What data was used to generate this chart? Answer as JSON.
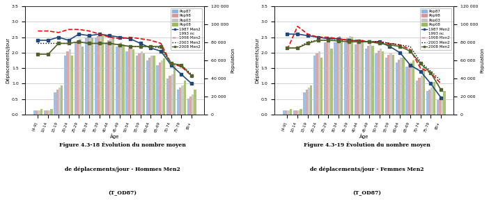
{
  "age_labels": [
    "[4-9]",
    "10-14",
    "15-19",
    "20-24",
    "25-29",
    "30-34",
    "35-39",
    "40-44",
    "45-49",
    "50-54",
    "55-59",
    "60-64",
    "65-69",
    "70-74",
    "75-79",
    "80+"
  ],
  "charts": [
    {
      "title_lines": [
        "Figure 4.3-18 Évolution du nombre moyen",
        "de déplacements/jour - Hommes Men2",
        "(T_OD87)"
      ],
      "pop87": [
        5000,
        5000,
        25000,
        65000,
        80000,
        85000,
        85000,
        80000,
        75000,
        70000,
        65000,
        60000,
        55000,
        40000,
        28000,
        18000
      ],
      "pop98": [
        5000,
        5000,
        28000,
        70000,
        82000,
        87000,
        87000,
        82000,
        78000,
        73000,
        68000,
        63000,
        58000,
        43000,
        30000,
        20000
      ],
      "pop03": [
        5000,
        5000,
        30000,
        72000,
        84000,
        89000,
        89000,
        84000,
        80000,
        75000,
        70000,
        65000,
        60000,
        45000,
        32000,
        22000
      ],
      "pop08": [
        6000,
        6000,
        32000,
        65000,
        75000,
        85000,
        88000,
        85000,
        78000,
        72000,
        68000,
        65000,
        62000,
        55000,
        38000,
        28000
      ],
      "men2_1987": [
        2.4,
        2.4,
        2.5,
        2.4,
        2.6,
        2.55,
        2.6,
        2.55,
        2.5,
        2.45,
        2.3,
        2.15,
        2.05,
        1.6,
        1.3,
        1.0
      ],
      "men2_1993": null,
      "men2_1998": [
        2.7,
        2.7,
        2.65,
        2.75,
        2.75,
        2.7,
        2.6,
        2.5,
        2.45,
        2.5,
        2.45,
        2.4,
        2.3,
        1.65,
        1.55,
        1.25
      ],
      "men2_2003": [
        2.3,
        2.3,
        2.3,
        2.3,
        2.35,
        2.3,
        2.3,
        2.3,
        2.25,
        2.2,
        2.2,
        2.2,
        2.15,
        1.65,
        1.6,
        1.3
      ],
      "men2_2008": [
        1.95,
        1.95,
        2.3,
        2.3,
        2.35,
        2.3,
        2.3,
        2.3,
        2.25,
        2.2,
        2.2,
        2.2,
        2.2,
        1.65,
        1.6,
        1.25
      ]
    },
    {
      "title_lines": [
        "Figure 4.3-19 Évolution du nombre moyen",
        "de déplacements/jour - Femmes Men2",
        "(T_OD87)"
      ],
      "pop87": [
        5000,
        5000,
        25000,
        65000,
        80000,
        80000,
        80000,
        78000,
        73000,
        68000,
        63000,
        58000,
        53000,
        38000,
        26000,
        16000
      ],
      "pop98": [
        5000,
        5000,
        28000,
        68000,
        80000,
        85000,
        85000,
        80000,
        76000,
        71000,
        66000,
        61000,
        56000,
        41000,
        28000,
        18000
      ],
      "pop03": [
        5000,
        5000,
        30000,
        70000,
        82000,
        87000,
        87000,
        82000,
        78000,
        73000,
        68000,
        63000,
        58000,
        43000,
        30000,
        20000
      ],
      "pop08": [
        6000,
        6000,
        32000,
        63000,
        73000,
        83000,
        86000,
        83000,
        76000,
        70000,
        66000,
        63000,
        60000,
        53000,
        36000,
        26000
      ],
      "men2_1987": [
        2.6,
        2.6,
        2.55,
        2.5,
        2.45,
        2.45,
        2.4,
        2.38,
        2.35,
        2.35,
        2.2,
        2.0,
        1.6,
        1.4,
        1.0,
        0.55
      ],
      "men2_1993": null,
      "men2_1998": [
        2.1,
        2.85,
        2.6,
        2.5,
        2.5,
        2.45,
        2.4,
        2.4,
        2.35,
        2.35,
        2.3,
        2.25,
        2.1,
        1.5,
        1.35,
        1.0
      ],
      "men2_2003": [
        2.15,
        2.15,
        2.35,
        2.4,
        2.4,
        2.4,
        2.35,
        2.35,
        2.35,
        2.35,
        2.3,
        2.25,
        2.2,
        1.7,
        1.4,
        1.1
      ],
      "men2_2008": [
        2.15,
        2.15,
        2.3,
        2.4,
        2.4,
        2.38,
        2.35,
        2.35,
        2.35,
        2.3,
        2.25,
        2.2,
        2.05,
        1.65,
        1.35,
        0.8
      ]
    }
  ],
  "bar_colors": {
    "pop87": "#8db4e2",
    "pop98": "#da9694",
    "pop03": "#c4c4c4",
    "pop08": "#9bbb59"
  },
  "line_colors": {
    "men2_1987": "#1f497d",
    "men2_1998": "#ff0000",
    "men2_2003": "#000000",
    "men2_2008": "#4f6228"
  },
  "ylim_left": [
    0,
    3.5
  ],
  "ylim_right": [
    0,
    120000
  ],
  "yticks_right": [
    0,
    20000,
    40000,
    60000,
    80000,
    100000,
    120000
  ],
  "ytick_labels_right": [
    "0",
    "20 000",
    "40 000",
    "60 000",
    "80 000",
    "100 000",
    "120 000"
  ],
  "yticks_left": [
    0,
    0.5,
    1.0,
    1.5,
    2.0,
    2.5,
    3.0,
    3.5
  ],
  "ylabel_left": "Déplacements/jour",
  "ylabel_right": "Population",
  "xlabel": "Âge",
  "legend_bars": [
    "Pop87",
    "Pop98",
    "Pop03",
    "Pop08"
  ],
  "legend_lines": [
    "1987 Men2",
    "1993 nc",
    "1998 Men2",
    "2003 Men2",
    "2008 Men2"
  ],
  "bg_color": "#ffffff",
  "grid_color": "#bfbfbf"
}
